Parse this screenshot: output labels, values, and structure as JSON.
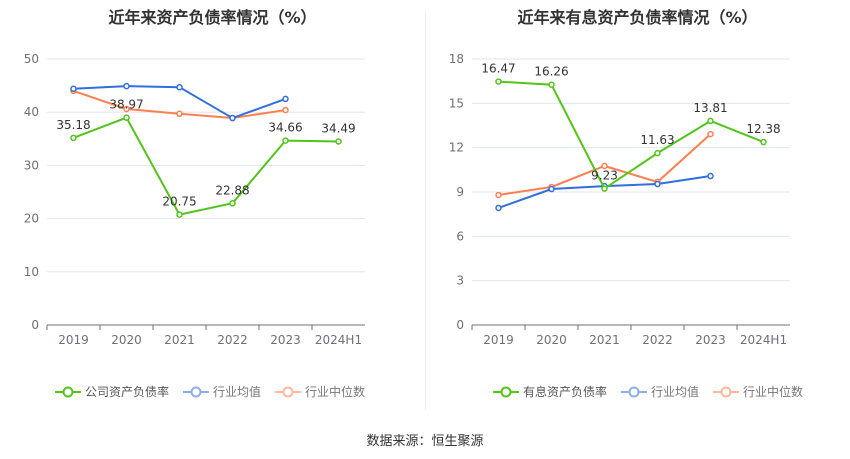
{
  "chart_data": [
    {
      "type": "line",
      "title": "近年来资产负债率情况（%）",
      "categories": [
        "2019",
        "2020",
        "2021",
        "2022",
        "2023",
        "2024H1"
      ],
      "ylim": [
        0,
        50
      ],
      "yticks": [
        0,
        10,
        20,
        30,
        40,
        50
      ],
      "series": [
        {
          "name": "公司资产负债率",
          "color": "#52c41a",
          "values": [
            35.18,
            38.97,
            20.75,
            22.88,
            34.66,
            34.49
          ],
          "labels": true
        },
        {
          "name": "行业均值",
          "color": "#2f6fde",
          "values": [
            44.4,
            44.9,
            44.7,
            38.9,
            42.5,
            null
          ]
        },
        {
          "name": "行业中位数",
          "color": "#ff7f50",
          "values": [
            44.0,
            40.6,
            39.7,
            38.9,
            40.4,
            null
          ]
        }
      ]
    },
    {
      "type": "line",
      "title": "近年来有息资产负债率情况（%）",
      "categories": [
        "2019",
        "2020",
        "2021",
        "2022",
        "2023",
        "2024H1"
      ],
      "ylim": [
        0,
        18
      ],
      "yticks": [
        0,
        3,
        6,
        9,
        12,
        15,
        18
      ],
      "series": [
        {
          "name": "有息资产负债率",
          "color": "#52c41a",
          "values": [
            16.47,
            16.26,
            9.23,
            11.63,
            13.81,
            12.38
          ],
          "labels": true
        },
        {
          "name": "行业均值",
          "color": "#2f6fde",
          "values": [
            7.92,
            9.2,
            9.4,
            9.54,
            10.08,
            null
          ]
        },
        {
          "name": "行业中位数",
          "color": "#ff7f50",
          "values": [
            8.8,
            9.34,
            10.76,
            9.68,
            12.92,
            null
          ]
        }
      ]
    }
  ],
  "source": "数据来源：恒生聚源"
}
